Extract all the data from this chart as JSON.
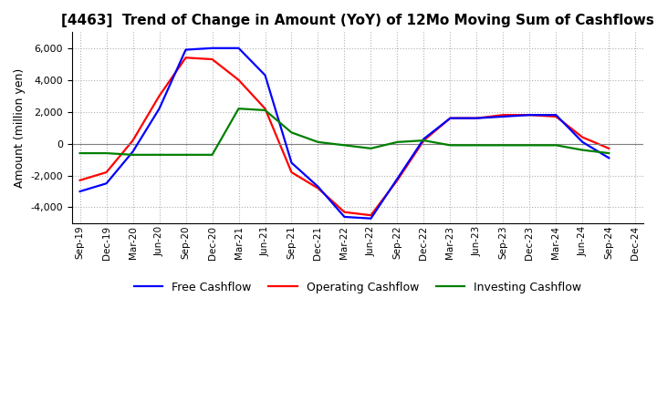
{
  "title": "[4463]  Trend of Change in Amount (YoY) of 12Mo Moving Sum of Cashflows",
  "ylabel": "Amount (million yen)",
  "x_labels": [
    "Sep-19",
    "Dec-19",
    "Mar-20",
    "Jun-20",
    "Sep-20",
    "Dec-20",
    "Mar-21",
    "Jun-21",
    "Sep-21",
    "Dec-21",
    "Mar-22",
    "Jun-22",
    "Sep-22",
    "Dec-22",
    "Mar-23",
    "Jun-23",
    "Sep-23",
    "Dec-23",
    "Mar-24",
    "Jun-24",
    "Sep-24",
    "Dec-24"
  ],
  "operating": [
    -2300,
    -1800,
    200,
    3000,
    5400,
    5300,
    4000,
    2200,
    -1800,
    -2800,
    -4300,
    -4500,
    -2300,
    200,
    1600,
    1600,
    1800,
    1800,
    1700,
    400,
    -300,
    null
  ],
  "investing": [
    -600,
    -600,
    -700,
    -700,
    -700,
    -700,
    2200,
    2100,
    700,
    100,
    -100,
    -300,
    100,
    200,
    -100,
    -100,
    -100,
    -100,
    -100,
    -400,
    -600,
    null
  ],
  "free": [
    -3000,
    -2500,
    -500,
    2200,
    5900,
    6000,
    6000,
    4300,
    -1200,
    -2700,
    -4600,
    -4700,
    -2200,
    300,
    1600,
    1600,
    1700,
    1800,
    1800,
    100,
    -900,
    null
  ],
  "operating_color": "#ff0000",
  "investing_color": "#008000",
  "free_color": "#0000ff",
  "ylim": [
    -5000,
    7000
  ],
  "yticks": [
    -4000,
    -2000,
    0,
    2000,
    4000,
    6000
  ],
  "background_color": "#ffffff",
  "grid_color": "#b0b0b0",
  "title_fontsize": 11,
  "axis_fontsize": 9,
  "legend_fontsize": 9
}
